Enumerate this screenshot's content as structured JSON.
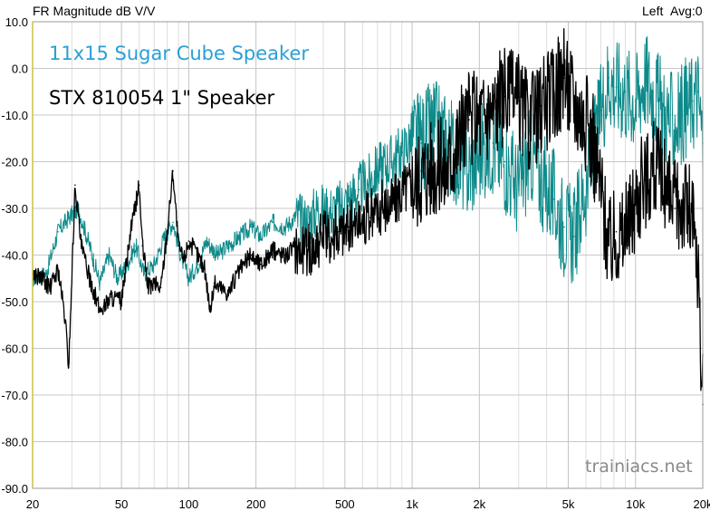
{
  "chart_data": {
    "type": "line",
    "title": "FR Magnitude dB V/V",
    "channel_label": "Left",
    "avg_label": "Avg:0",
    "watermark": "trainiacs.net",
    "xscale": "log",
    "xlim": [
      20,
      20000
    ],
    "ylim": [
      -90,
      10
    ],
    "grid": true,
    "x_ticks": [
      {
        "value": 20,
        "label": "20"
      },
      {
        "value": 50,
        "label": "50"
      },
      {
        "value": 100,
        "label": "100"
      },
      {
        "value": 200,
        "label": "200"
      },
      {
        "value": 500,
        "label": "500"
      },
      {
        "value": 1000,
        "label": "1k"
      },
      {
        "value": 2000,
        "label": "2k"
      },
      {
        "value": 5000,
        "label": "5k"
      },
      {
        "value": 10000,
        "label": "10k"
      },
      {
        "value": 20000,
        "label": "20k"
      }
    ],
    "y_ticks": [
      {
        "value": 10,
        "label": "10.0"
      },
      {
        "value": 0,
        "label": "0.0"
      },
      {
        "value": -10,
        "label": "-10.0"
      },
      {
        "value": -20,
        "label": "-20.0"
      },
      {
        "value": -30,
        "label": "-30.0"
      },
      {
        "value": -40,
        "label": "-40.0"
      },
      {
        "value": -50,
        "label": "-50.0"
      },
      {
        "value": -60,
        "label": "-60.0"
      },
      {
        "value": -70,
        "label": "-70.0"
      },
      {
        "value": -80,
        "label": "-80.0"
      },
      {
        "value": -90,
        "label": "-90.0"
      }
    ],
    "series": [
      {
        "name": "11x15 Sugar Cube Speaker",
        "color": "#0e8a8a",
        "legend_color": "#2a9fd6",
        "x": [
          20,
          23,
          26,
          29,
          32,
          36,
          40,
          44,
          48,
          53,
          58,
          63,
          70,
          78,
          85,
          92,
          100,
          110,
          120,
          135,
          150,
          170,
          190,
          210,
          240,
          270,
          300,
          340,
          380,
          420,
          470,
          520,
          580,
          650,
          720,
          800,
          900,
          1000,
          1100,
          1250,
          1400,
          1600,
          1800,
          2000,
          2300,
          2600,
          3000,
          3400,
          3800,
          4300,
          4800,
          5300,
          5800,
          6400,
          7000,
          7600,
          8200,
          9000,
          10000,
          11000,
          12000,
          13500,
          15000,
          16500,
          18000,
          19000,
          20000
        ],
        "y": [
          -45,
          -44,
          -35,
          -32,
          -30,
          -38,
          -46,
          -40,
          -45,
          -42,
          -38,
          -44,
          -42,
          -36,
          -33,
          -40,
          -45,
          -42,
          -37,
          -40,
          -38,
          -36,
          -34,
          -36,
          -33,
          -34,
          -32,
          -33,
          -30,
          -31,
          -30,
          -28,
          -26,
          -24,
          -21,
          -20,
          -18,
          -15,
          -16,
          -13,
          -15,
          -19,
          -22,
          -18,
          -16,
          -20,
          -26,
          -18,
          -24,
          -28,
          -34,
          -36,
          -28,
          -20,
          -9,
          -2,
          -4,
          -5,
          -7,
          -2,
          -5,
          -10,
          -12,
          -9,
          -7,
          -5,
          -16
        ]
      },
      {
        "name": "STX 810054 1\" Speaker",
        "color": "#000000",
        "legend_color": "#000000",
        "x": [
          20,
          22,
          24,
          26,
          28,
          29,
          31,
          33,
          36,
          40,
          45,
          50,
          55,
          60,
          62,
          66,
          70,
          75,
          80,
          85,
          90,
          95,
          100,
          110,
          118,
          125,
          130,
          140,
          150,
          170,
          190,
          210,
          240,
          270,
          300,
          340,
          380,
          420,
          470,
          520,
          580,
          650,
          720,
          800,
          900,
          1000,
          1100,
          1250,
          1400,
          1600,
          1800,
          2000,
          2300,
          2600,
          3000,
          3400,
          3800,
          4300,
          4800,
          5300,
          5800,
          6400,
          7000,
          7600,
          8200,
          9000,
          10000,
          11000,
          12000,
          13500,
          15000,
          16500,
          18000,
          19000,
          20000
        ],
        "y": [
          -44,
          -45,
          -47,
          -43,
          -54,
          -64,
          -25,
          -38,
          -45,
          -52,
          -49,
          -50,
          -35,
          -25,
          -38,
          -47,
          -46,
          -47,
          -35,
          -22,
          -38,
          -41,
          -37,
          -40,
          -43,
          -52,
          -46,
          -47,
          -48,
          -43,
          -40,
          -42,
          -39,
          -40,
          -38,
          -39,
          -37,
          -36,
          -35,
          -34,
          -33,
          -32,
          -30,
          -29,
          -26,
          -24,
          -22,
          -20,
          -22,
          -15,
          -11,
          -10,
          -8,
          -6,
          -7,
          -12,
          -8,
          -5,
          -2,
          -6,
          -10,
          -15,
          -25,
          -38,
          -35,
          -36,
          -28,
          -24,
          -20,
          -26,
          -30,
          -28,
          -32,
          -45,
          -72
        ]
      }
    ]
  }
}
